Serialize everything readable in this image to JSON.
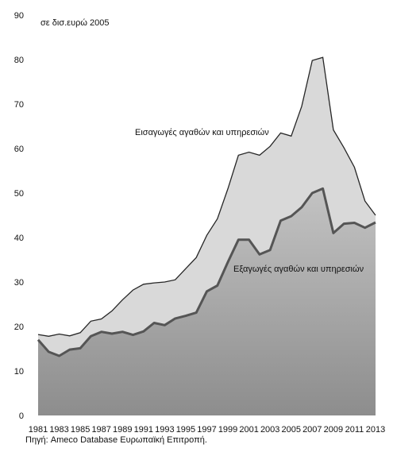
{
  "chart_data": {
    "type": "area",
    "unit_label": "σε δισ.ευρώ 2005",
    "source": "Πηγή: Ameco Database Ευρωπαϊκή Επιτροπή.",
    "x": [
      1981,
      1982,
      1983,
      1984,
      1985,
      1986,
      1987,
      1988,
      1989,
      1990,
      1991,
      1992,
      1993,
      1994,
      1995,
      1996,
      1997,
      1998,
      1999,
      2000,
      2001,
      2002,
      2003,
      2004,
      2005,
      2006,
      2007,
      2008,
      2009,
      2010,
      2011,
      2012,
      2013
    ],
    "x_tick_labels": [
      "1981",
      "1983",
      "1985",
      "1987",
      "1989",
      "1991",
      "1993",
      "1995",
      "1997",
      "1999",
      "2001",
      "2003",
      "2005",
      "2007",
      "2009",
      "2011",
      "2013"
    ],
    "ylim": [
      0,
      90
    ],
    "y_ticks": [
      0,
      10,
      20,
      30,
      40,
      50,
      60,
      70,
      80,
      90
    ],
    "series": [
      {
        "name": "Εισαγωγές αγαθών και υπηρεσιών",
        "values": [
          18.2,
          17.8,
          18.3,
          17.9,
          18.6,
          21.2,
          21.7,
          23.5,
          26.0,
          28.2,
          29.5,
          29.8,
          30.0,
          30.5,
          33.0,
          35.5,
          40.5,
          44.2,
          51.0,
          58.5,
          59.2,
          58.5,
          60.5,
          63.5,
          62.8,
          69.5,
          79.8,
          80.5,
          64.2,
          60.2,
          55.8,
          48.2,
          45.0
        ],
        "fill": "#d9d9d9",
        "stroke": "#262626"
      },
      {
        "name": "Εξαγωγές αγαθών και υπηρεσιών",
        "values": [
          17.0,
          14.3,
          13.4,
          14.8,
          15.1,
          17.8,
          18.8,
          18.4,
          18.8,
          18.1,
          18.9,
          20.8,
          20.3,
          21.8,
          22.4,
          23.1,
          27.9,
          29.2,
          34.5,
          39.5,
          39.5,
          36.2,
          37.2,
          43.8,
          44.8,
          46.8,
          50.0,
          51.0,
          41.0,
          43.1,
          43.3,
          42.2,
          43.4
        ]
      }
    ],
    "colors": {
      "exports_line": "#555555",
      "plot_background": "#ffffff"
    }
  }
}
